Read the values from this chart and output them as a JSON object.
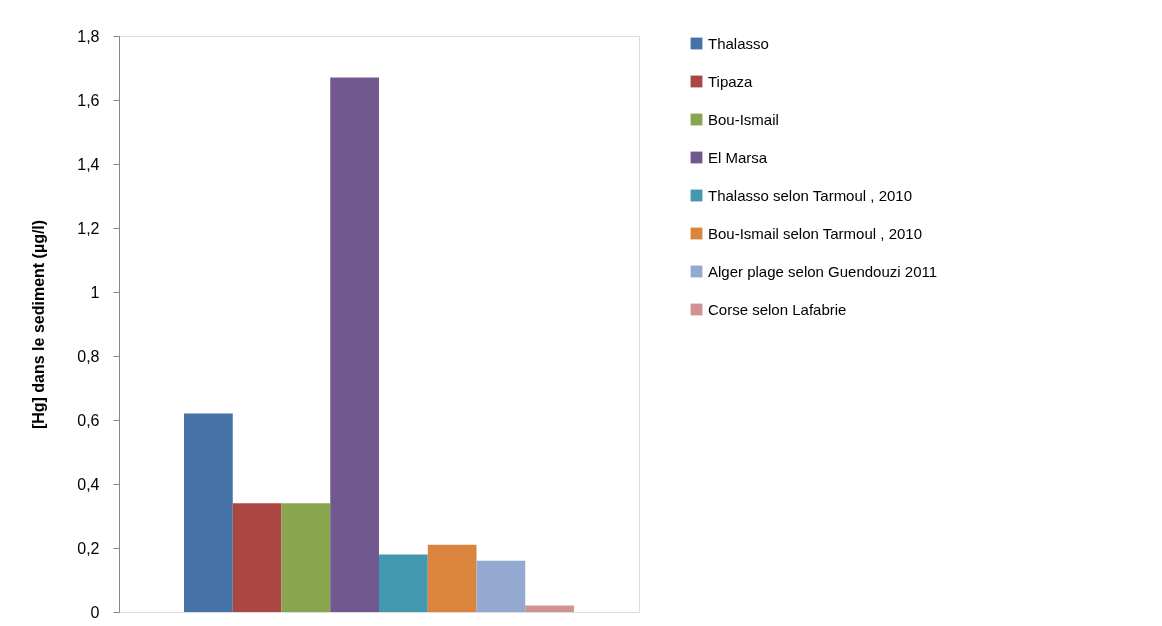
{
  "chart_data": {
    "type": "bar",
    "ylabel": "[Hg] dans le sediment (µg/l)",
    "categories": [
      null
    ],
    "series": [
      {
        "name": "Thalasso",
        "color": "#4572a7",
        "values": [
          0.62
        ]
      },
      {
        "name": "Tipaza",
        "color": "#aa4643",
        "values": [
          0.34
        ]
      },
      {
        "name": "Bou-Ismail",
        "color": "#89a54e",
        "values": [
          0.34
        ]
      },
      {
        "name": "El Marsa",
        "color": "#71588f",
        "values": [
          1.67
        ]
      },
      {
        "name": "Thalasso selon Tarmoul , 2010",
        "color": "#4198af",
        "values": [
          0.18
        ]
      },
      {
        "name": "Bou-Ismail selon Tarmoul , 2010",
        "color": "#db843d",
        "values": [
          0.21
        ]
      },
      {
        "name": "Alger plage selon Guendouzi 2011",
        "color": "#93a9cf",
        "values": [
          0.16
        ]
      },
      {
        "name": "Corse selon Lafabrie",
        "color": "#d19392",
        "values": [
          0.02
        ]
      }
    ],
    "ylim": [
      0,
      1.8
    ],
    "yticks": [
      0,
      {
        "value": 0.2,
        "label": "0,2"
      },
      {
        "value": 0.4,
        "label": "0,4"
      },
      {
        "value": 0.6,
        "label": "0,6"
      },
      {
        "value": 0.8,
        "label": "0,8"
      },
      1,
      {
        "value": 1.2,
        "label": "1,2"
      },
      {
        "value": 1.4,
        "label": "1,4"
      },
      {
        "value": 1.6,
        "label": "1,6"
      },
      {
        "value": 1.8,
        "label": "1,8"
      }
    ],
    "grid": false,
    "legend": "right",
    "tick_labels": "y"
  }
}
